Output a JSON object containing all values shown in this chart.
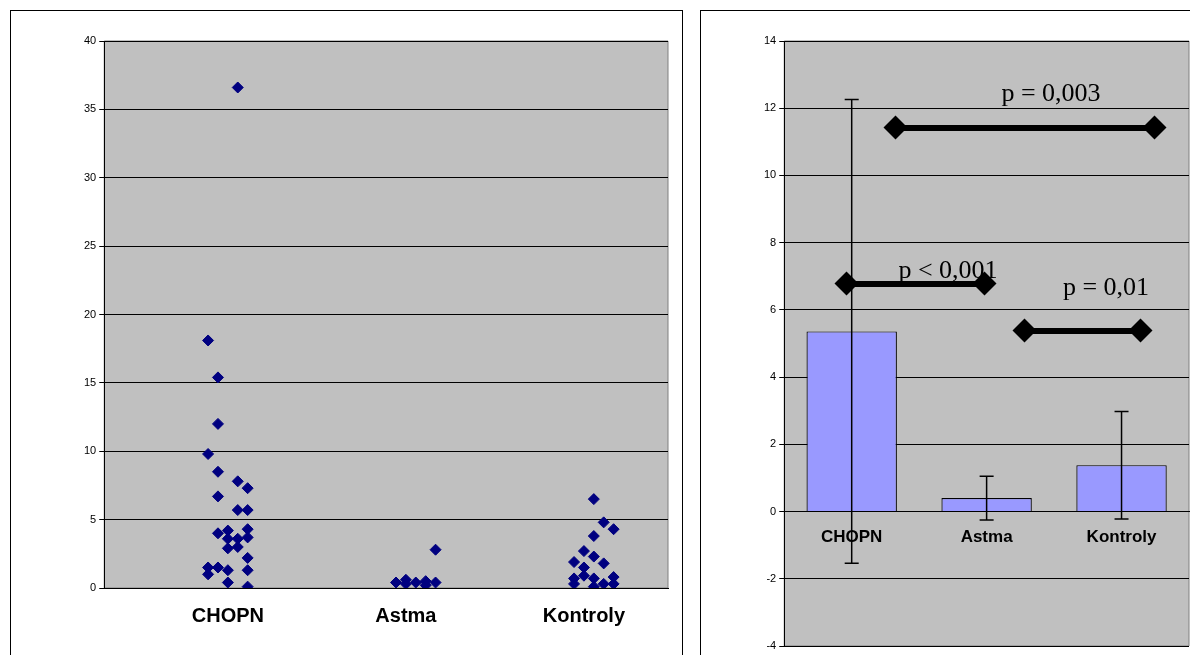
{
  "chart_data": [
    {
      "type": "scatter",
      "categories": [
        null,
        null,
        null,
        null,
        null,
        null,
        null,
        null,
        null,
        null,
        null,
        null,
        "CHOPN",
        null,
        null,
        null,
        null,
        null,
        null,
        null,
        null,
        null,
        null,
        null,
        null,
        null,
        null,
        null,
        null,
        null,
        "Astma",
        null,
        null,
        null,
        null,
        null,
        null,
        null,
        null,
        null,
        null,
        null,
        null,
        null,
        null,
        null,
        null,
        null,
        "Kontroly",
        null,
        null,
        null,
        null,
        null,
        null,
        null,
        null
      ],
      "series": [
        {
          "color": "#000080",
          "values": [
            null,
            null,
            null,
            null,
            null,
            null,
            null,
            null,
            null,
            null,
            18.1,
            15.4,
            4.2,
            36.6,
            7.3,
            null,
            null,
            null,
            null,
            null,
            null,
            null,
            null,
            null,
            null,
            null,
            null,
            null,
            null,
            0.4,
            0.6,
            0.4,
            0.5,
            2.8,
            null,
            null,
            null,
            null,
            null,
            null,
            null,
            null,
            null,
            null,
            null,
            null,
            null,
            1.9,
            2.7,
            6.5,
            4.8,
            4.3,
            null,
            null,
            null,
            null,
            null
          ]
        },
        {
          "color": "#000080",
          "values": [
            null,
            null,
            null,
            null,
            null,
            null,
            null,
            null,
            null,
            null,
            9.8,
            12.0,
            3.6,
            7.8,
            5.7,
            null,
            null,
            null,
            null,
            null,
            null,
            null,
            null,
            null,
            null,
            null,
            null,
            null,
            null,
            null,
            0.3,
            null,
            0.2,
            0.4,
            null,
            null,
            null,
            null,
            null,
            null,
            null,
            null,
            null,
            null,
            null,
            null,
            null,
            0.7,
            1.5,
            3.8,
            1.8,
            0.8,
            null,
            null,
            null,
            null,
            null
          ]
        },
        {
          "color": "#000080",
          "values": [
            null,
            null,
            null,
            null,
            null,
            null,
            null,
            null,
            null,
            null,
            1.5,
            8.5,
            2.9,
            5.7,
            4.3,
            null,
            null,
            null,
            null,
            null,
            null,
            null,
            null,
            null,
            null,
            null,
            null,
            null,
            null,
            null,
            null,
            null,
            null,
            null,
            null,
            null,
            null,
            null,
            null,
            null,
            null,
            null,
            null,
            null,
            null,
            null,
            null,
            0.3,
            0.9,
            2.3,
            0.3,
            0.3,
            null,
            null,
            null,
            null,
            null
          ]
        },
        {
          "color": "#000080",
          "values": [
            null,
            null,
            null,
            null,
            null,
            null,
            null,
            null,
            null,
            null,
            1.0,
            6.7,
            1.3,
            3.6,
            3.7,
            null,
            null,
            null,
            null,
            null,
            null,
            null,
            null,
            null,
            null,
            null,
            null,
            null,
            null,
            null,
            null,
            null,
            null,
            null,
            null,
            null,
            null,
            null,
            null,
            null,
            null,
            null,
            null,
            null,
            null,
            null,
            null,
            null,
            null,
            0.7,
            null,
            null,
            null,
            null,
            null,
            null,
            null
          ]
        },
        {
          "color": "#000080",
          "values": [
            null,
            null,
            null,
            null,
            null,
            null,
            null,
            null,
            null,
            null,
            null,
            4.0,
            0.4,
            3.0,
            2.2,
            null,
            null,
            null,
            null,
            null,
            null,
            null,
            null,
            null,
            null,
            null,
            null,
            null,
            null,
            null,
            null,
            null,
            null,
            null,
            null,
            null,
            null,
            null,
            null,
            null,
            null,
            null,
            null,
            null,
            null,
            null,
            null,
            null,
            null,
            0.1,
            null,
            null,
            null,
            null,
            null,
            null,
            null
          ]
        },
        {
          "color": "#000080",
          "values": [
            null,
            null,
            null,
            null,
            null,
            null,
            null,
            null,
            null,
            null,
            null,
            1.5,
            null,
            null,
            1.3,
            null,
            null,
            null,
            null,
            null,
            null,
            null,
            null,
            null,
            null,
            null,
            null,
            null,
            null,
            null,
            null,
            null,
            null,
            null,
            null,
            null,
            null,
            null,
            null,
            null,
            null,
            null,
            null,
            null,
            null,
            null,
            null,
            null,
            null,
            null,
            null,
            null,
            null,
            null,
            null,
            null,
            null
          ]
        },
        {
          "color": "#000080",
          "values": [
            null,
            null,
            null,
            null,
            null,
            null,
            null,
            null,
            null,
            null,
            null,
            null,
            null,
            null,
            0.1,
            null,
            null,
            null,
            null,
            null,
            null,
            null,
            null,
            null,
            null,
            null,
            null,
            null,
            null,
            null,
            null,
            null,
            null,
            null,
            null,
            null,
            null,
            null,
            null,
            null,
            null,
            null,
            null,
            null,
            null,
            null,
            null,
            null,
            null,
            null,
            null,
            null,
            null,
            null,
            null,
            null,
            null
          ]
        }
      ],
      "marker": "diamond",
      "ylim": [
        0,
        40
      ],
      "yticks": [
        0,
        5,
        10,
        15,
        20,
        25,
        30,
        35,
        40
      ],
      "grid": "y",
      "legend": false
    },
    {
      "type": "bar",
      "categories": [
        "CHOPN",
        "Astma",
        "Kontroly"
      ],
      "series": [
        {
          "color": "#9999ff",
          "values": [
            5.36,
            0.4,
            1.38
          ],
          "errors": [
            6.9,
            0.65,
            1.6
          ]
        }
      ],
      "annotations": [
        "p < 0,001",
        "p = 0,003",
        "p = 0,01"
      ],
      "ylim": [
        -4,
        14
      ],
      "yticks": [
        -4,
        -2,
        0,
        2,
        4,
        6,
        8,
        10,
        12,
        14
      ],
      "grid": "y",
      "legend": false
    }
  ]
}
